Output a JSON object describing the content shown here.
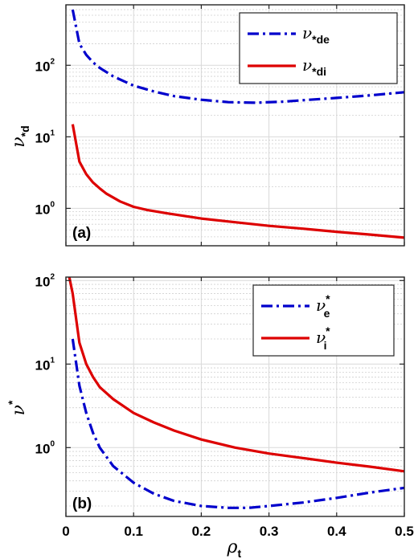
{
  "chart_data": [
    {
      "type": "line",
      "panel_label": "(a)",
      "ylabel": "ν*d",
      "yscale": "log",
      "xlim": [
        0,
        0.5
      ],
      "ylim": [
        0.3,
        700
      ],
      "grid": true,
      "legend_placement": "top-right",
      "xticks": [
        "0",
        "0.1",
        "0.2",
        "0.3",
        "0.4",
        "0.5"
      ],
      "yticks": [
        {
          "value": 1,
          "base": "10",
          "exp": "0"
        },
        {
          "value": 10,
          "base": "10",
          "exp": "1"
        },
        {
          "value": 100,
          "base": "10",
          "exp": "2"
        }
      ],
      "series": [
        {
          "name": "ν*de",
          "color": "#0000cc",
          "style": "dashdot",
          "x": [
            0.01,
            0.02,
            0.03,
            0.04,
            0.05,
            0.07,
            0.1,
            0.13,
            0.16,
            0.2,
            0.24,
            0.28,
            0.32,
            0.36,
            0.4,
            0.45,
            0.5
          ],
          "y": [
            600,
            200,
            140,
            110,
            92,
            70,
            52,
            43,
            37,
            33,
            30.5,
            30,
            31,
            33,
            35,
            38,
            42
          ]
        },
        {
          "name": "ν*di",
          "color": "#dd0000",
          "style": "solid",
          "x": [
            0.01,
            0.02,
            0.03,
            0.04,
            0.05,
            0.06,
            0.08,
            0.1,
            0.12,
            0.15,
            0.2,
            0.25,
            0.3,
            0.35,
            0.4,
            0.45,
            0.5
          ],
          "y": [
            15,
            4.5,
            3.0,
            2.3,
            1.9,
            1.6,
            1.25,
            1.05,
            0.95,
            0.85,
            0.72,
            0.64,
            0.57,
            0.52,
            0.47,
            0.43,
            0.39
          ]
        }
      ]
    },
    {
      "type": "line",
      "panel_label": "(b)",
      "ylabel": "ν*",
      "xlabel": "ρt",
      "yscale": "log",
      "xlim": [
        0,
        0.5
      ],
      "ylim": [
        0.15,
        110
      ],
      "grid": true,
      "legend_placement": "top-right",
      "xticks": [
        "0",
        "0.1",
        "0.2",
        "0.3",
        "0.4",
        "0.5"
      ],
      "yticks": [
        {
          "value": 1,
          "base": "10",
          "exp": "0"
        },
        {
          "value": 10,
          "base": "10",
          "exp": "1"
        },
        {
          "value": 100,
          "base": "10",
          "exp": "2"
        }
      ],
      "series": [
        {
          "name": "ν*e",
          "color": "#0000cc",
          "style": "dashdot",
          "x": [
            0.01,
            0.02,
            0.03,
            0.04,
            0.05,
            0.07,
            0.1,
            0.13,
            0.16,
            0.2,
            0.24,
            0.27,
            0.3,
            0.35,
            0.4,
            0.45,
            0.5
          ],
          "y": [
            20,
            5.5,
            2.6,
            1.5,
            1.0,
            0.6,
            0.38,
            0.28,
            0.23,
            0.2,
            0.19,
            0.19,
            0.2,
            0.22,
            0.25,
            0.29,
            0.33
          ]
        },
        {
          "name": "ν*i",
          "color": "#dd0000",
          "style": "solid",
          "x": [
            0.005,
            0.01,
            0.02,
            0.03,
            0.04,
            0.05,
            0.07,
            0.1,
            0.13,
            0.16,
            0.2,
            0.25,
            0.3,
            0.35,
            0.4,
            0.45,
            0.5
          ],
          "y": [
            110,
            70,
            18,
            10,
            7,
            5.3,
            3.8,
            2.6,
            2.0,
            1.6,
            1.25,
            1.0,
            0.85,
            0.75,
            0.66,
            0.59,
            0.52
          ]
        }
      ]
    }
  ]
}
